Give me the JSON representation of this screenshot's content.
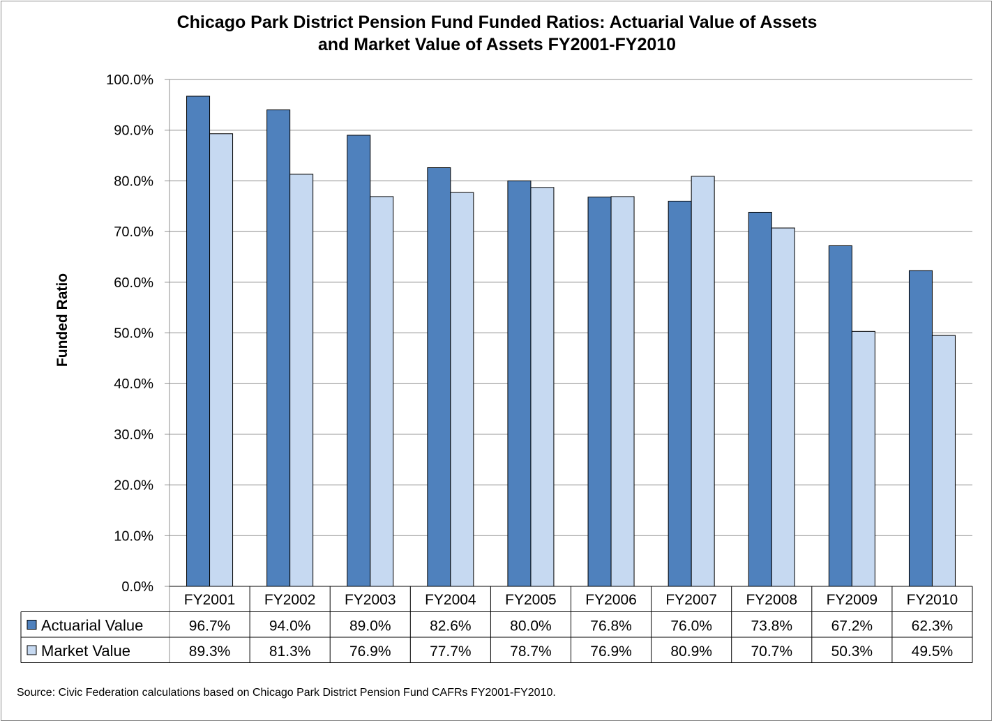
{
  "chart_data": {
    "type": "bar",
    "title_lines": [
      "Chicago Park District Pension Fund Funded Ratios: Actuarial Value of Assets",
      "and Market Value of Assets FY2001-FY2010"
    ],
    "xlabel": "",
    "ylabel": "Funded Ratio",
    "ylim": [
      0,
      100
    ],
    "yticks": [
      "0.0%",
      "10.0%",
      "20.0%",
      "30.0%",
      "40.0%",
      "50.0%",
      "60.0%",
      "70.0%",
      "80.0%",
      "90.0%",
      "100.0%"
    ],
    "grid": true,
    "legend": "data-table",
    "categories": [
      "FY2001",
      "FY2002",
      "FY2003",
      "FY2004",
      "FY2005",
      "FY2006",
      "FY2007",
      "FY2008",
      "FY2009",
      "FY2010"
    ],
    "series": [
      {
        "name": "Actuarial Value",
        "color": "#4f81bd",
        "values": [
          96.7,
          94.0,
          89.0,
          82.6,
          80.0,
          76.8,
          76.0,
          73.8,
          67.2,
          62.3
        ],
        "labels": [
          "96.7%",
          "94.0%",
          "89.0%",
          "82.6%",
          "80.0%",
          "76.8%",
          "76.0%",
          "73.8%",
          "67.2%",
          "62.3%"
        ]
      },
      {
        "name": "Market Value",
        "color": "#c6d9f1",
        "values": [
          89.3,
          81.3,
          76.9,
          77.7,
          78.7,
          76.9,
          80.9,
          70.7,
          50.3,
          49.5
        ],
        "labels": [
          "89.3%",
          "81.3%",
          "76.9%",
          "77.7%",
          "78.7%",
          "76.9%",
          "80.9%",
          "70.7%",
          "50.3%",
          "49.5%"
        ]
      }
    ],
    "source": "Source: Civic Federation calculations based on Chicago Park District Pension Fund CAFRs FY2001-FY2010."
  }
}
